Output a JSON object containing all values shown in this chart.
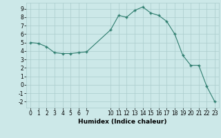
{
  "x": [
    0,
    1,
    2,
    3,
    4,
    5,
    6,
    7,
    10,
    11,
    12,
    13,
    14,
    15,
    16,
    17,
    18,
    19,
    20,
    21,
    22,
    23
  ],
  "y": [
    5.0,
    4.9,
    4.5,
    3.8,
    3.7,
    3.7,
    3.8,
    3.9,
    6.5,
    8.2,
    8.0,
    8.8,
    9.2,
    8.5,
    8.2,
    7.5,
    6.0,
    3.5,
    2.3,
    2.3,
    -0.2,
    -2.0
  ],
  "line_color": "#2e7d6e",
  "marker_color": "#2e7d6e",
  "bg_color": "#cce8e8",
  "grid_color": "#aacccc",
  "xlabel": "Humidex (Indice chaleur)",
  "xlim": [
    -0.5,
    23.5
  ],
  "ylim": [
    -2.7,
    9.7
  ],
  "yticks": [
    -2,
    -1,
    0,
    1,
    2,
    3,
    4,
    5,
    6,
    7,
    8,
    9
  ],
  "xticks": [
    0,
    1,
    2,
    3,
    4,
    5,
    6,
    7,
    10,
    11,
    12,
    13,
    14,
    15,
    16,
    17,
    18,
    19,
    20,
    21,
    22,
    23
  ],
  "tick_labelsize": 5.5,
  "xlabel_fontsize": 6.5
}
